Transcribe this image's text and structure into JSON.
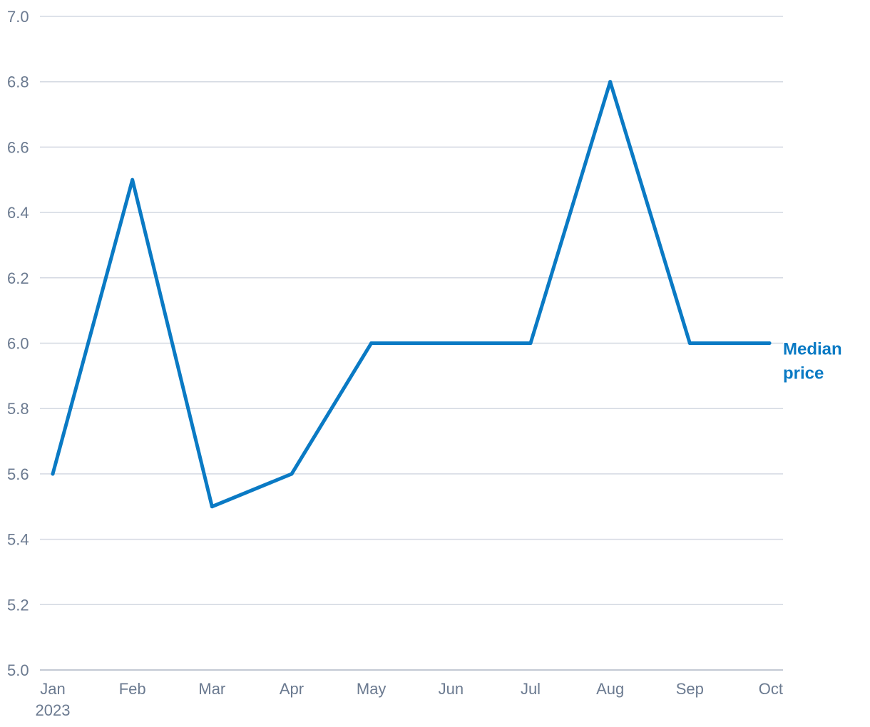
{
  "chart_data": {
    "type": "line",
    "categories": [
      "Jan",
      "Feb",
      "Mar",
      "Apr",
      "May",
      "Jun",
      "Jul",
      "Aug",
      "Sep",
      "Oct"
    ],
    "first_category_year": "2023",
    "series": [
      {
        "name": "Median price",
        "name_lines": [
          "Median",
          "price"
        ],
        "values": [
          5.6,
          6.5,
          5.5,
          5.6,
          6.0,
          6.0,
          6.0,
          6.8,
          6.0,
          6.0
        ],
        "color": "#0a7ac4"
      }
    ],
    "ylim": [
      5.0,
      7.0
    ],
    "yticks": [
      "5.0",
      "5.2",
      "5.4",
      "5.6",
      "5.8",
      "6.0",
      "6.2",
      "6.4",
      "6.6",
      "6.8",
      "7.0"
    ],
    "grid": true,
    "legend": "end-of-line label",
    "title": "",
    "xlabel": "",
    "ylabel": ""
  }
}
